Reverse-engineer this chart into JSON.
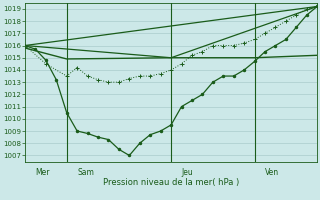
{
  "title": "Pression niveau de la mer( hPa )",
  "bg_color": "#cce8e8",
  "grid_color": "#aacccc",
  "line_color": "#1a5c1a",
  "spine_color": "#1a5c1a",
  "xlim": [
    0,
    28
  ],
  "ylim": [
    1006.5,
    1019.5
  ],
  "yticks": [
    1007,
    1008,
    1009,
    1010,
    1011,
    1012,
    1013,
    1014,
    1015,
    1016,
    1017,
    1018,
    1019
  ],
  "day_separators": [
    4,
    14,
    22
  ],
  "day_labels": [
    {
      "x": 1,
      "label": "Mer"
    },
    {
      "x": 5,
      "label": "Sam"
    },
    {
      "x": 15,
      "label": "Jeu"
    },
    {
      "x": 23,
      "label": "Ven"
    }
  ],
  "line_main": {
    "x": [
      0,
      1,
      2,
      3,
      4,
      5,
      6,
      7,
      8,
      9,
      10,
      11,
      12,
      13,
      14,
      15,
      16,
      17,
      18,
      19,
      20,
      21,
      22,
      23,
      24,
      25,
      26,
      27,
      28
    ],
    "y": [
      1016,
      1015.7,
      1014.8,
      1013.2,
      1010.5,
      1009.0,
      1008.8,
      1008.5,
      1008.3,
      1007.5,
      1007.0,
      1008.0,
      1008.7,
      1009.0,
      1009.5,
      1011.0,
      1011.5,
      1012.0,
      1013.0,
      1013.5,
      1013.5,
      1014.0,
      1014.7,
      1015.5,
      1016.0,
      1016.5,
      1017.5,
      1018.5,
      1019.2
    ]
  },
  "line_flat": {
    "x": [
      0,
      4,
      14,
      22,
      28
    ],
    "y": [
      1015.8,
      1014.9,
      1015.0,
      1015.0,
      1015.2
    ]
  },
  "line_upper": {
    "x": [
      0,
      28
    ],
    "y": [
      1016.0,
      1019.2
    ]
  },
  "line_lower_diag": {
    "x": [
      0,
      14,
      28
    ],
    "y": [
      1016.0,
      1015.0,
      1019.2
    ]
  },
  "markers_series": {
    "x": [
      0,
      2,
      4,
      5,
      6,
      7,
      8,
      9,
      10,
      11,
      12,
      13,
      14,
      15,
      16,
      17,
      18,
      19,
      20,
      21,
      22,
      23,
      24,
      25,
      26,
      27,
      28
    ],
    "y": [
      1016,
      1014.5,
      1013.5,
      1014.2,
      1013.5,
      1013.2,
      1013.0,
      1013.0,
      1013.3,
      1013.5,
      1013.5,
      1013.7,
      1014.0,
      1014.5,
      1015.2,
      1015.5,
      1016.0,
      1016.0,
      1016.0,
      1016.2,
      1016.5,
      1017.0,
      1017.5,
      1018.0,
      1018.5,
      1019.0,
      1019.2
    ]
  }
}
